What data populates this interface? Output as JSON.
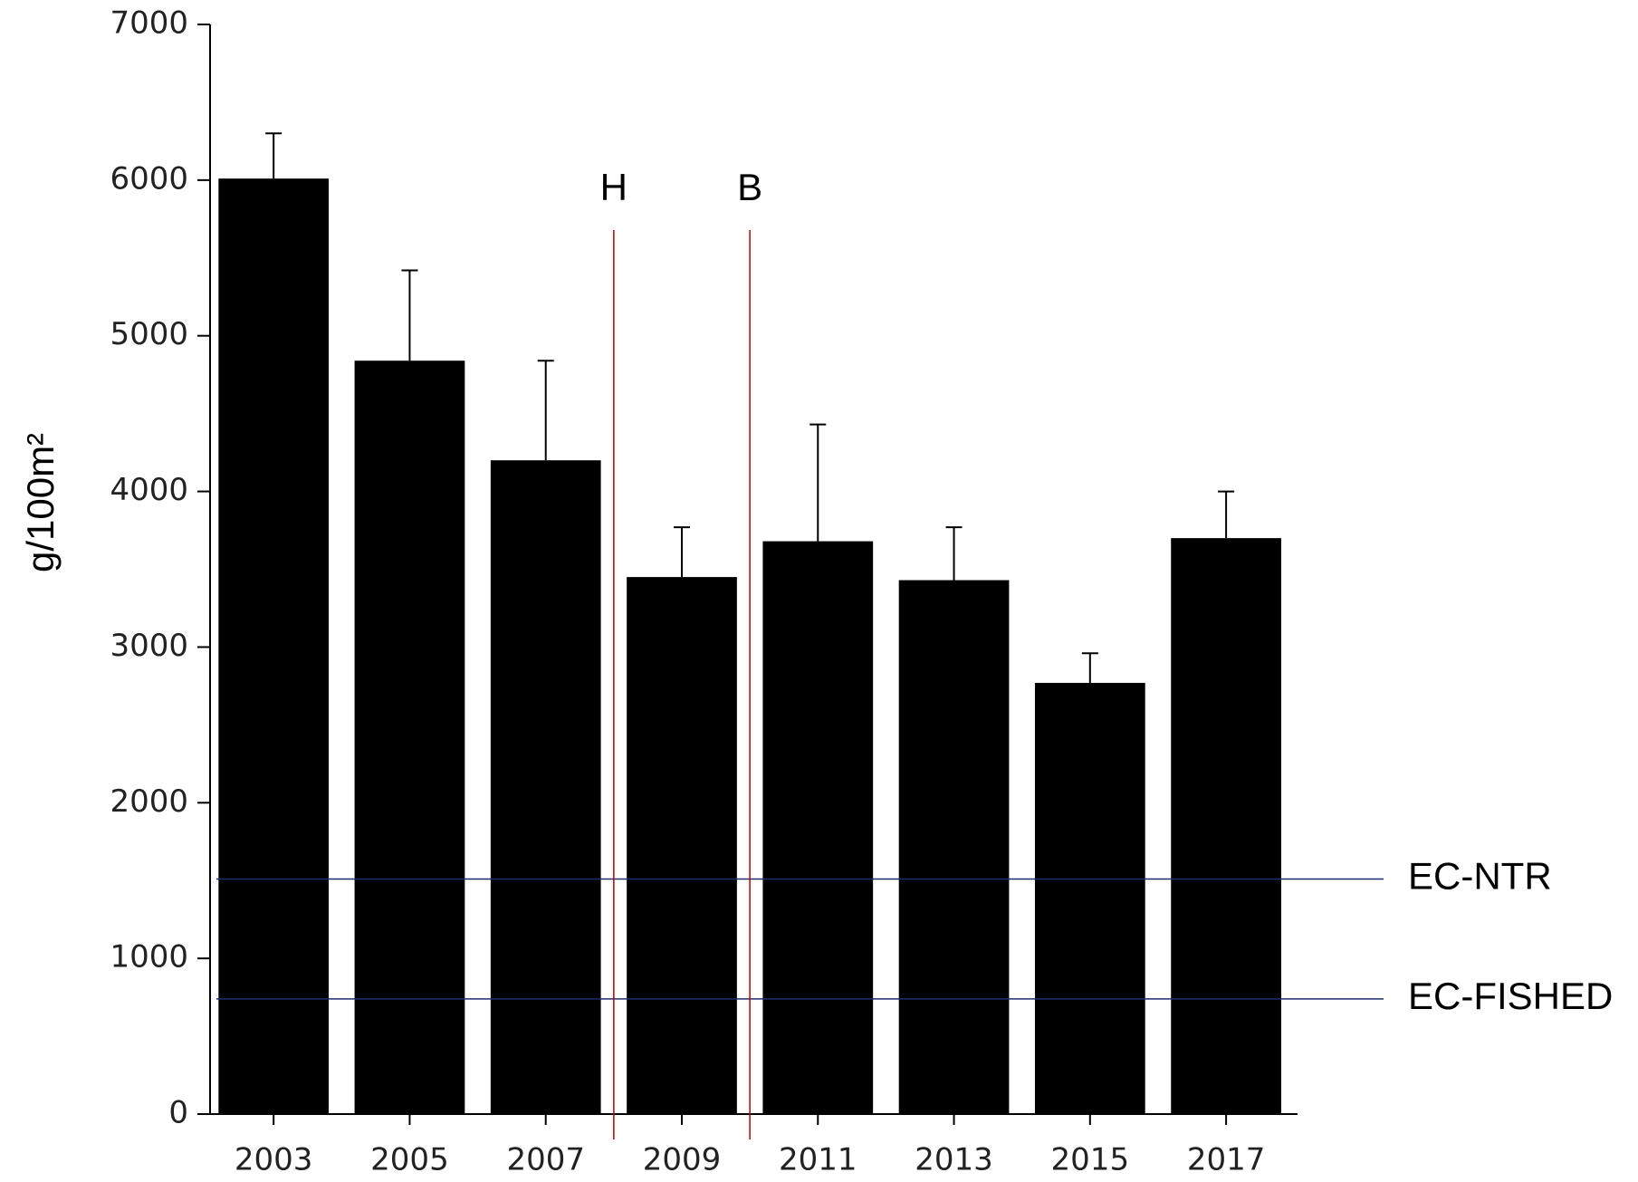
{
  "chart_data": {
    "type": "bar",
    "y_label": "g/100m²",
    "x": [
      2003,
      2005,
      2007,
      2009,
      2011,
      2013,
      2015,
      2017
    ],
    "values": [
      6010,
      4840,
      4200,
      3450,
      3680,
      3430,
      2770,
      3700
    ],
    "errors": [
      290,
      580,
      640,
      320,
      750,
      340,
      190,
      300
    ],
    "color": "#000000",
    "xlim": [
      2001.8,
      2018.05
    ],
    "xticks": [
      2003,
      2005,
      2007,
      2009,
      2011,
      2013,
      2015,
      2017
    ],
    "ylim": [
      0,
      7000
    ],
    "yticks": [
      0,
      1000,
      2000,
      3000,
      4000,
      5000,
      6000,
      7000
    ],
    "hlines": [
      {
        "label": "EC-NTR",
        "value": 1510,
        "color": "#1f2d6b"
      },
      {
        "label": "EC-FISHED",
        "value": 740,
        "color": "#1f2d6b"
      }
    ],
    "vlines": [
      {
        "label": "H",
        "x": 2008,
        "color": "#c00000"
      },
      {
        "label": "B",
        "x": 2010,
        "color": "#c00000"
      }
    ]
  }
}
